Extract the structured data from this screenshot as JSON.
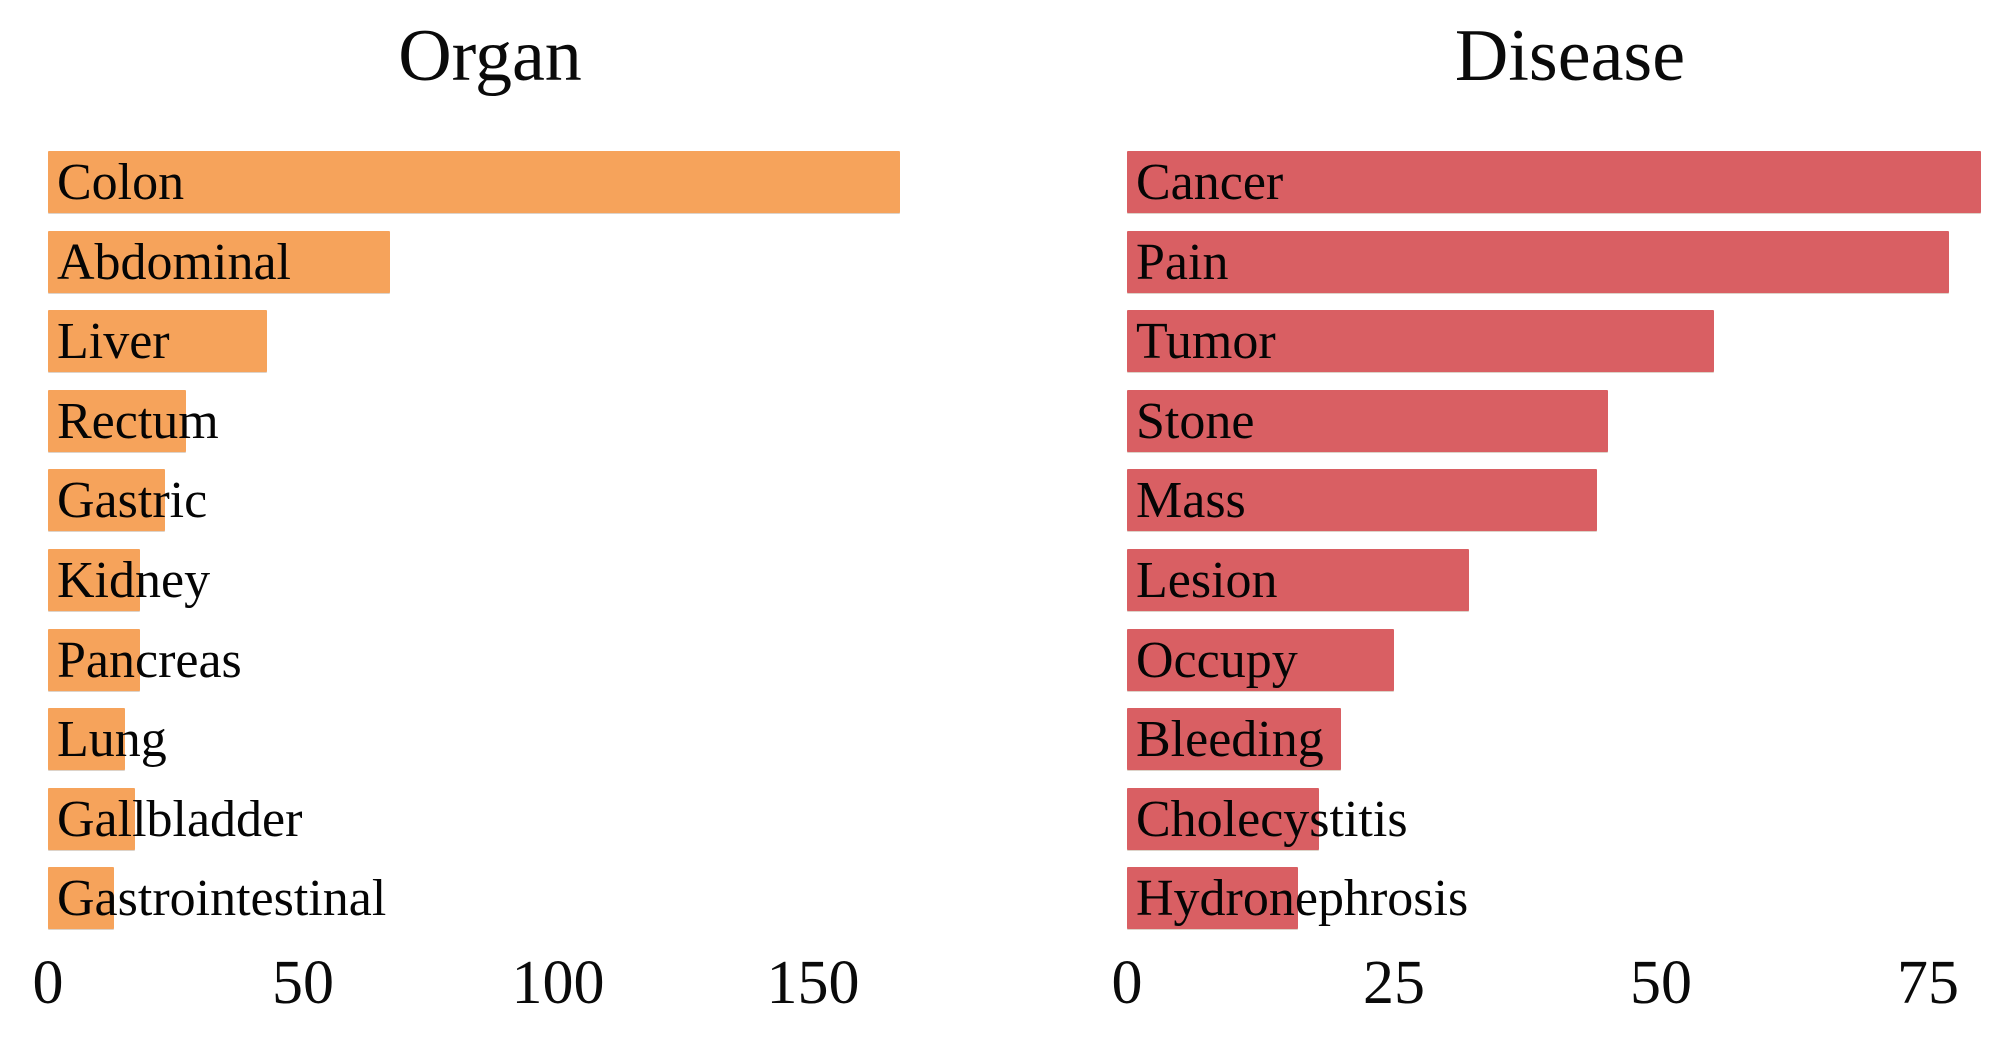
{
  "figure": {
    "background": "#ffffff",
    "text_color": "#000000"
  },
  "chart_data": [
    {
      "type": "bar",
      "orientation": "horizontal",
      "title": "Organ",
      "categories": [
        "Colon",
        "Abdominal",
        "Liver",
        "Rectum",
        "Gastric",
        "Kidney",
        "Pancreas",
        "Lung",
        "Gallbladder",
        "Gastrointestinal"
      ],
      "values": [
        167,
        67,
        43,
        27,
        23,
        18,
        18,
        15,
        17,
        13
      ],
      "xlabel": "",
      "ylabel": "",
      "xticks": [
        0,
        50,
        100,
        150
      ],
      "xlim": [
        0,
        178
      ],
      "bar_color": "#f6a35b",
      "grid": false,
      "legend": "none",
      "bar_labels_inside": true
    },
    {
      "type": "bar",
      "orientation": "horizontal",
      "title": "Disease",
      "categories": [
        "Cancer",
        "Pain",
        "Tumor",
        "Stone",
        "Mass",
        "Lesion",
        "Occupy",
        "Bleeding",
        "Cholecystitis",
        "Hydronephrosis"
      ],
      "values": [
        80,
        77,
        55,
        45,
        44,
        32,
        25,
        20,
        18,
        16
      ],
      "xlabel": "",
      "ylabel": "",
      "xticks": [
        0,
        25,
        50,
        75
      ],
      "xlim": [
        0,
        82
      ],
      "bar_color": "#d95f63",
      "grid": false,
      "legend": "none",
      "bar_labels_inside": true
    }
  ]
}
